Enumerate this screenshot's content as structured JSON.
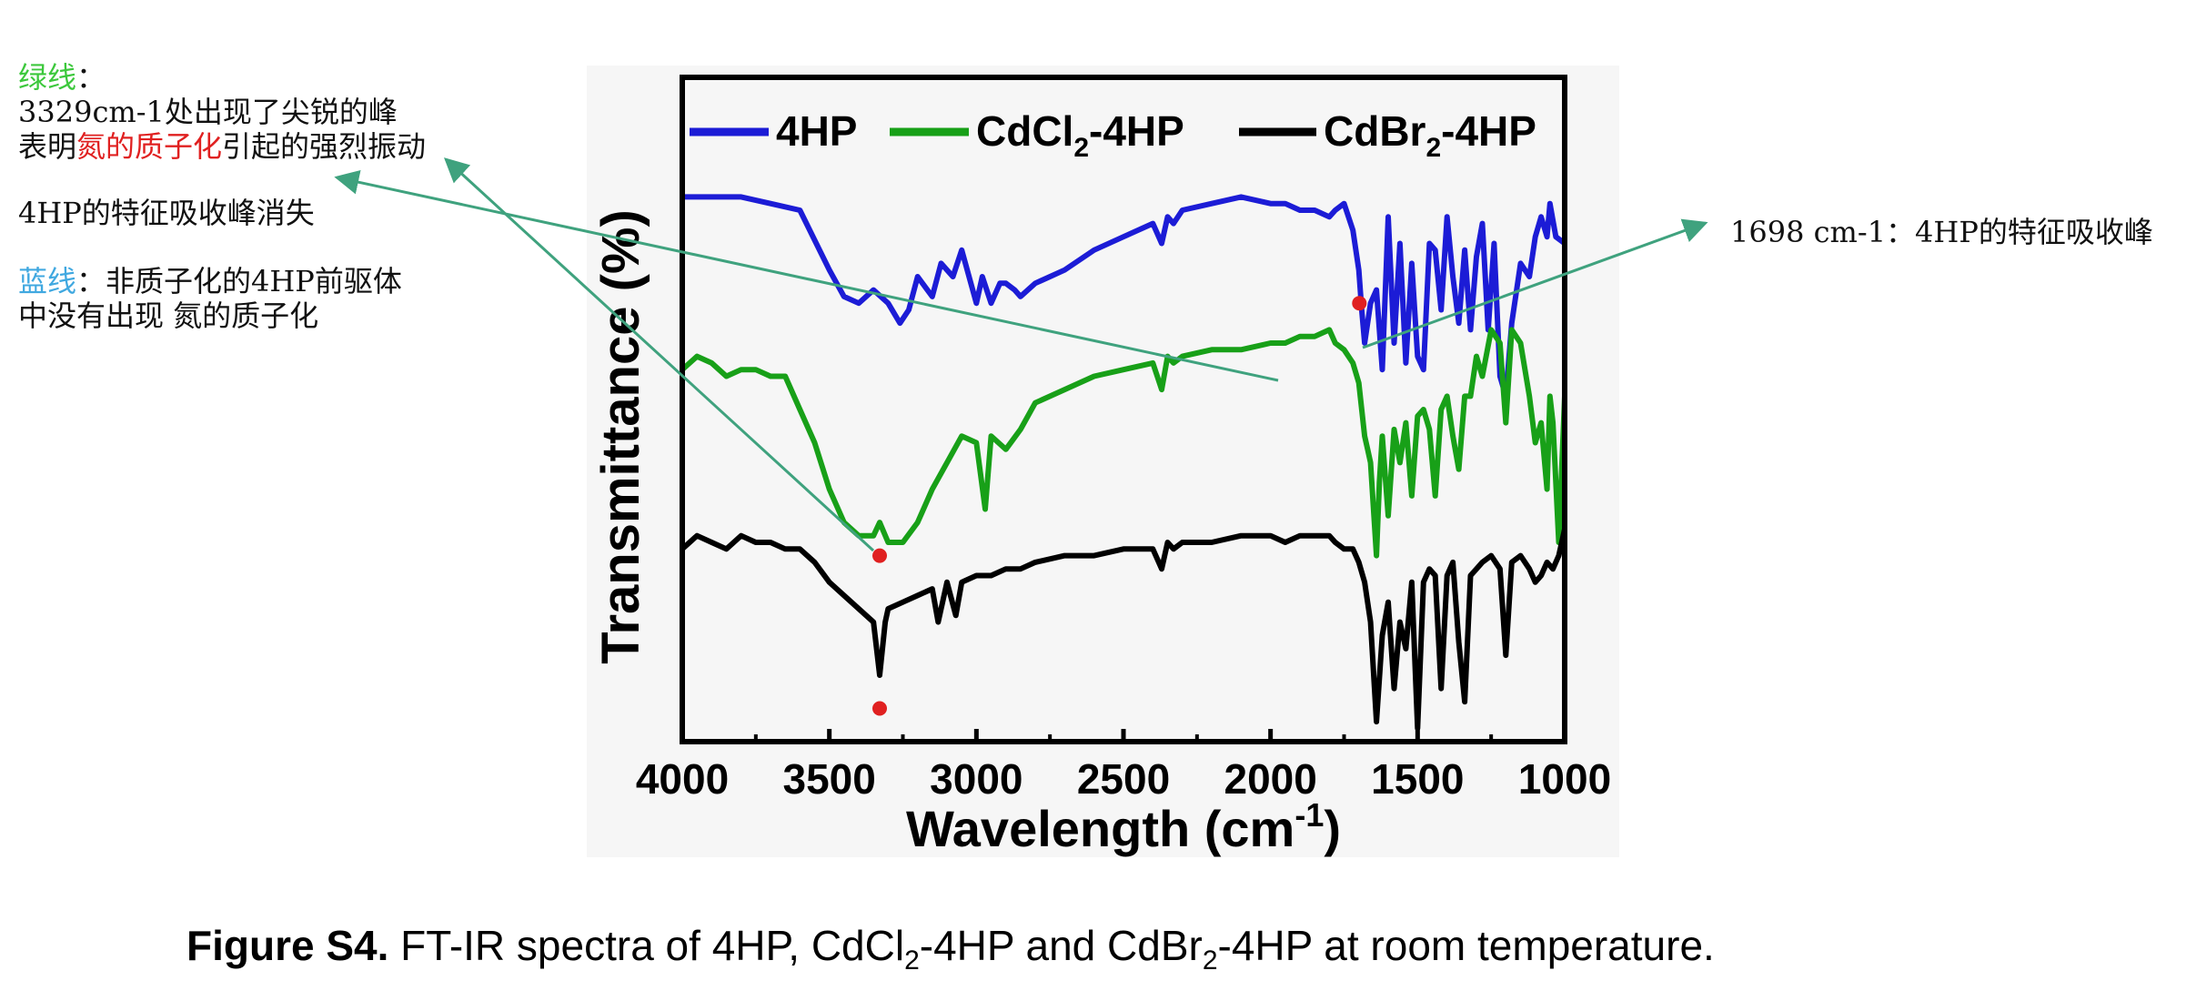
{
  "chart_data": {
    "type": "line",
    "xlabel": "Wavelength (cm",
    "xlabel_sup": "-1",
    "xlabel_close": ")",
    "ylabel": "Transmittance (%)",
    "xlim": [
      4000,
      1000
    ],
    "x_reversed": true,
    "xticks": [
      "4000",
      "3500",
      "3000",
      "2500",
      "2000",
      "1500",
      "1000"
    ],
    "xtick_values": [
      4000,
      3500,
      3000,
      2500,
      2000,
      1500,
      1000
    ],
    "ylim": [
      0,
      100
    ],
    "yticks_shown": false,
    "grid": false,
    "legend": {
      "position": "top",
      "entries": [
        {
          "label": "4HP",
          "sub": "",
          "suffix": "",
          "color": "#1c1cd6"
        },
        {
          "label": "CdCl",
          "sub": "2",
          "suffix": "-4HP",
          "color": "#18a018"
        },
        {
          "label": "CdBr",
          "sub": "2",
          "suffix": "-4HP",
          "color": "#000000"
        }
      ]
    },
    "series": [
      {
        "name": "4HP",
        "color": "#1c1cd6",
        "x": [
          4000,
          3900,
          3800,
          3700,
          3600,
          3500,
          3450,
          3400,
          3350,
          3300,
          3260,
          3230,
          3200,
          3150,
          3120,
          3080,
          3050,
          3000,
          2980,
          2950,
          2920,
          2900,
          2870,
          2850,
          2800,
          2750,
          2700,
          2600,
          2500,
          2400,
          2370,
          2350,
          2330,
          2300,
          2200,
          2100,
          2000,
          1950,
          1900,
          1850,
          1800,
          1780,
          1750,
          1720,
          1700,
          1690,
          1680,
          1660,
          1640,
          1620,
          1600,
          1580,
          1560,
          1540,
          1520,
          1500,
          1480,
          1460,
          1440,
          1420,
          1400,
          1380,
          1360,
          1340,
          1320,
          1300,
          1280,
          1260,
          1240,
          1220,
          1200,
          1180,
          1150,
          1120,
          1100,
          1080,
          1060,
          1050,
          1030,
          1000
        ],
        "y": [
          82,
          82,
          82,
          81,
          80,
          71,
          67,
          66,
          68,
          66,
          63,
          65,
          70,
          67,
          72,
          70,
          74,
          66,
          70,
          66,
          69,
          69,
          68,
          67,
          69,
          70,
          71,
          74,
          76,
          78,
          75,
          79,
          78,
          80,
          81,
          82,
          81,
          81,
          80,
          80,
          79,
          80,
          81,
          77,
          71,
          65,
          60,
          66,
          68,
          56,
          79,
          60,
          75,
          57,
          72,
          58,
          56,
          75,
          74,
          65,
          79,
          70,
          63,
          74,
          62,
          73,
          78,
          62,
          75,
          55,
          52,
          63,
          72,
          70,
          76,
          79,
          76,
          81,
          76,
          75
        ]
      },
      {
        "name": "CdCl2-4HP",
        "color": "#18a018",
        "x": [
          4000,
          3950,
          3900,
          3850,
          3800,
          3750,
          3700,
          3650,
          3600,
          3550,
          3500,
          3450,
          3400,
          3350,
          3329,
          3300,
          3250,
          3200,
          3150,
          3100,
          3050,
          3000,
          2970,
          2950,
          2900,
          2850,
          2800,
          2700,
          2600,
          2500,
          2400,
          2370,
          2350,
          2330,
          2300,
          2200,
          2100,
          2000,
          1950,
          1900,
          1850,
          1800,
          1780,
          1750,
          1720,
          1700,
          1690,
          1680,
          1670,
          1660,
          1640,
          1630,
          1620,
          1600,
          1580,
          1560,
          1540,
          1520,
          1500,
          1480,
          1460,
          1440,
          1420,
          1400,
          1380,
          1360,
          1340,
          1320,
          1300,
          1280,
          1250,
          1220,
          1200,
          1180,
          1150,
          1120,
          1100,
          1080,
          1060,
          1050,
          1040,
          1020,
          1000
        ],
        "y": [
          56,
          58,
          57,
          55,
          56,
          56,
          55,
          55,
          50,
          45,
          38,
          33,
          31,
          31,
          33,
          30,
          30,
          33,
          38,
          42,
          46,
          45,
          35,
          46,
          44,
          47,
          51,
          53,
          55,
          56,
          57,
          53,
          58,
          57,
          58,
          59,
          59,
          60,
          60,
          61,
          61,
          62,
          60,
          59,
          57,
          54,
          50,
          46,
          44,
          42,
          28,
          39,
          46,
          34,
          47,
          42,
          48,
          37,
          49,
          50,
          47,
          37,
          50,
          52,
          46,
          41,
          52,
          52,
          58,
          55,
          62,
          60,
          48,
          62,
          60,
          52,
          45,
          48,
          38,
          52,
          48,
          30,
          52
        ]
      },
      {
        "name": "CdBr2-4HP",
        "color": "#000000",
        "x": [
          4000,
          3950,
          3900,
          3850,
          3800,
          3750,
          3700,
          3650,
          3600,
          3550,
          3500,
          3450,
          3400,
          3350,
          3329,
          3310,
          3300,
          3250,
          3200,
          3150,
          3130,
          3100,
          3070,
          3050,
          3000,
          2950,
          2900,
          2850,
          2800,
          2700,
          2600,
          2500,
          2400,
          2370,
          2350,
          2330,
          2300,
          2200,
          2100,
          2000,
          1950,
          1900,
          1850,
          1800,
          1780,
          1750,
          1720,
          1700,
          1680,
          1660,
          1640,
          1620,
          1600,
          1580,
          1560,
          1540,
          1520,
          1500,
          1480,
          1460,
          1440,
          1420,
          1400,
          1380,
          1360,
          1340,
          1320,
          1300,
          1280,
          1250,
          1220,
          1200,
          1180,
          1150,
          1120,
          1100,
          1080,
          1060,
          1040,
          1020,
          1000
        ],
        "y": [
          29,
          31,
          30,
          29,
          31,
          30,
          30,
          29,
          29,
          27,
          24,
          22,
          20,
          18,
          10,
          18,
          20,
          21,
          22,
          23,
          18,
          24,
          19,
          24,
          25,
          25,
          26,
          26,
          27,
          28,
          28,
          29,
          29,
          26,
          30,
          29,
          30,
          30,
          31,
          31,
          30,
          31,
          31,
          31,
          30,
          29,
          29,
          27,
          24,
          18,
          3,
          16,
          21,
          8,
          18,
          14,
          24,
          2,
          24,
          26,
          25,
          8,
          25,
          27,
          15,
          6,
          25,
          26,
          27,
          28,
          26,
          13,
          27,
          28,
          26,
          24,
          25,
          27,
          26,
          28,
          32
        ]
      }
    ],
    "markers": [
      {
        "x": 1698,
        "y": 66,
        "color": "#e02020"
      },
      {
        "x": 3329,
        "y": 28,
        "color": "#e02020"
      },
      {
        "x": 3329,
        "y": 5,
        "color": "#e02020"
      }
    ]
  },
  "caption": {
    "bold": "Figure S4.",
    "text": " FT-IR spectra of 4HP, CdCl",
    "sub1": "2",
    "mid": "-4HP and CdBr",
    "sub2": "2",
    "end": "-4HP at room temperature."
  },
  "annotations": {
    "green_line_title": "绿线",
    "green_line_colon": "：",
    "green_line_peak": "3329cm-1处出现了尖锐的峰",
    "green_line_meaning_a": "表明",
    "green_line_meaning_highlight": "氮的质子化",
    "green_line_meaning_b": "引起的强烈振动",
    "disappear": "4HP的特征吸收峰消失",
    "blue_line_title": "蓝线",
    "blue_line_colon": "：",
    "blue_line_text_1": "非质子化的4HP前驱体",
    "blue_line_text_2": "中没有出现 氮的质子化",
    "right_note": "1698 cm-1：4HP的特征吸收峰",
    "colors": {
      "green": "#3cc83c",
      "blue": "#40a8e0",
      "red": "#e02020",
      "arrow": "#3fa27e"
    }
  }
}
